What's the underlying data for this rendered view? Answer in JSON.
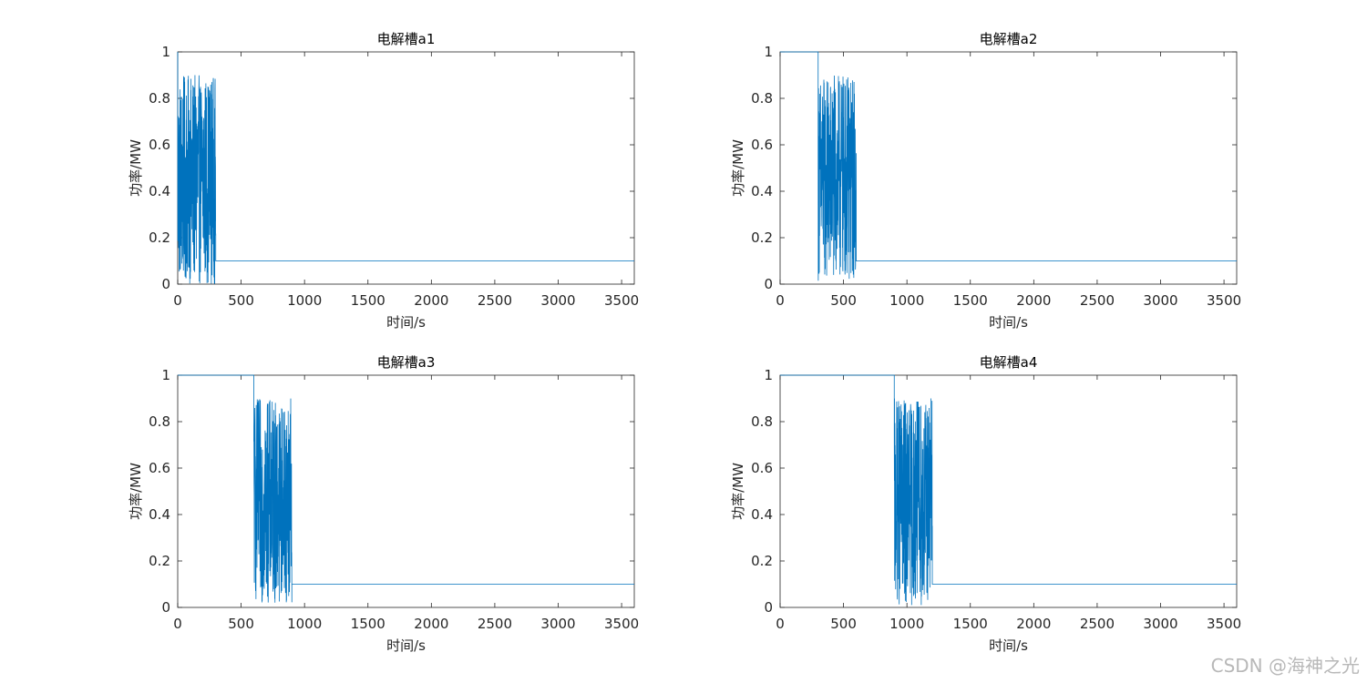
{
  "watermark": "CSDN @海神之光",
  "colors": {
    "line": "#0072BD",
    "axes": "#262626",
    "background": "#ffffff"
  },
  "chart_data": [
    {
      "type": "line",
      "title": "电解槽a1",
      "xlabel": "时间/s",
      "ylabel": "功率/MW",
      "xlim": [
        0,
        3600
      ],
      "ylim": [
        0,
        1
      ],
      "xticks": [
        "0",
        "500",
        "1000",
        "1500",
        "2000",
        "2500",
        "3000",
        "3500"
      ],
      "yticks": [
        "0",
        "0.2",
        "0.4",
        "0.6",
        "0.8",
        "1"
      ],
      "series": [
        {
          "segments": [
            {
              "kind": "constant",
              "x": [
                0,
                0
              ],
              "y": 1
            },
            {
              "kind": "fluctuating",
              "x": [
                0,
                300
              ],
              "y_range": [
                0.0,
                0.9
              ],
              "points": 300
            },
            {
              "kind": "constant",
              "x": [
                300,
                3600
              ],
              "y": 0.1
            }
          ]
        }
      ]
    },
    {
      "type": "line",
      "title": "电解槽a2",
      "xlabel": "时间/s",
      "ylabel": "功率/MW",
      "xlim": [
        0,
        3600
      ],
      "ylim": [
        0,
        1
      ],
      "xticks": [
        "0",
        "500",
        "1000",
        "1500",
        "2000",
        "2500",
        "3000",
        "3500"
      ],
      "yticks": [
        "0",
        "0.2",
        "0.4",
        "0.6",
        "0.8",
        "1"
      ],
      "series": [
        {
          "segments": [
            {
              "kind": "constant",
              "x": [
                0,
                300
              ],
              "y": 1
            },
            {
              "kind": "fluctuating",
              "x": [
                300,
                600
              ],
              "y_range": [
                0.01,
                0.9
              ],
              "points": 300
            },
            {
              "kind": "constant",
              "x": [
                600,
                3600
              ],
              "y": 0.1
            }
          ]
        }
      ]
    },
    {
      "type": "line",
      "title": "电解槽a3",
      "xlabel": "时间/s",
      "ylabel": "功率/MW",
      "xlim": [
        0,
        3600
      ],
      "ylim": [
        0,
        1
      ],
      "xticks": [
        "0",
        "500",
        "1000",
        "1500",
        "2000",
        "2500",
        "3000",
        "3500"
      ],
      "yticks": [
        "0",
        "0.2",
        "0.4",
        "0.6",
        "0.8",
        "1"
      ],
      "series": [
        {
          "segments": [
            {
              "kind": "constant",
              "x": [
                0,
                600
              ],
              "y": 1
            },
            {
              "kind": "fluctuating",
              "x": [
                600,
                900
              ],
              "y_range": [
                0.02,
                0.9
              ],
              "points": 300
            },
            {
              "kind": "constant",
              "x": [
                900,
                3600
              ],
              "y": 0.1
            }
          ]
        }
      ]
    },
    {
      "type": "line",
      "title": "电解槽a4",
      "xlabel": "时间/s",
      "ylabel": "功率/MW",
      "xlim": [
        0,
        3600
      ],
      "ylim": [
        0,
        1
      ],
      "xticks": [
        "0",
        "500",
        "1000",
        "1500",
        "2000",
        "2500",
        "3000",
        "3500"
      ],
      "yticks": [
        "0",
        "0.2",
        "0.4",
        "0.6",
        "0.8",
        "1"
      ],
      "series": [
        {
          "segments": [
            {
              "kind": "constant",
              "x": [
                0,
                900
              ],
              "y": 1
            },
            {
              "kind": "fluctuating",
              "x": [
                900,
                1200
              ],
              "y_range": [
                0.01,
                0.9
              ],
              "points": 300
            },
            {
              "kind": "constant",
              "x": [
                1200,
                3600
              ],
              "y": 0.1
            }
          ]
        }
      ]
    }
  ]
}
